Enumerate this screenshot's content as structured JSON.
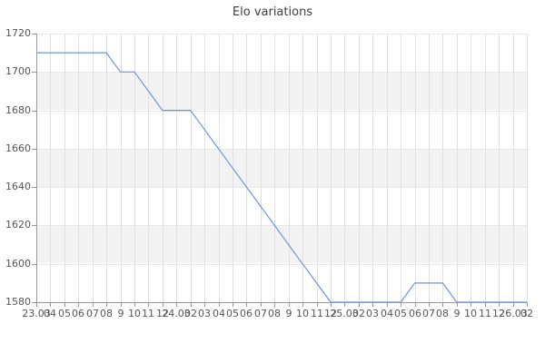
{
  "page": {
    "title": "Elo variations"
  },
  "colors": {
    "background": "#ffffff",
    "line": "#6d94e1",
    "band": "#f3f3f3",
    "grid_vertical": "#e0e0e0",
    "grid_horizontal": "#e7e7e7",
    "axis": "#999999",
    "tick_label": "#555555",
    "title_text": "#3e3e3e"
  },
  "chart_data": {
    "type": "line",
    "title": "Elo variations",
    "xlabel": "",
    "ylabel": "",
    "ylim": [
      1580,
      1720
    ],
    "y_tick_step": 20,
    "y_tick_labels": [
      "1720",
      "1700",
      "1680",
      "1660",
      "1640",
      "1620",
      "1600",
      "1580"
    ],
    "x_tick_labels": [
      "23.03",
      "04",
      "05",
      "06",
      "07",
      "08",
      "9",
      "10",
      "11",
      "12",
      "24.03",
      "02",
      "03",
      "04",
      "05",
      "06",
      "07",
      "08",
      "9",
      "10",
      "11",
      "12",
      "25.03",
      "02",
      "03",
      "04",
      "05",
      "06",
      "07",
      "08",
      "9",
      "10",
      "11",
      "12",
      "26.03",
      "02"
    ],
    "series": [
      {
        "name": "Elo",
        "values": [
          1710,
          1710,
          1710,
          1710,
          1710,
          1710,
          1700,
          1700,
          1690,
          1680,
          1680,
          1680,
          1670,
          1660,
          1650,
          1640,
          1630,
          1620,
          1610,
          1600,
          1590,
          1580,
          1580,
          1580,
          1580,
          1580,
          1580,
          1590,
          1590,
          1590,
          1580,
          1580,
          1580,
          1580,
          1580,
          1580
        ]
      }
    ],
    "grid": {
      "vertical_gridlines": true,
      "horizontal_gridlines": true,
      "alternating_bands": true
    },
    "legend": "none"
  }
}
